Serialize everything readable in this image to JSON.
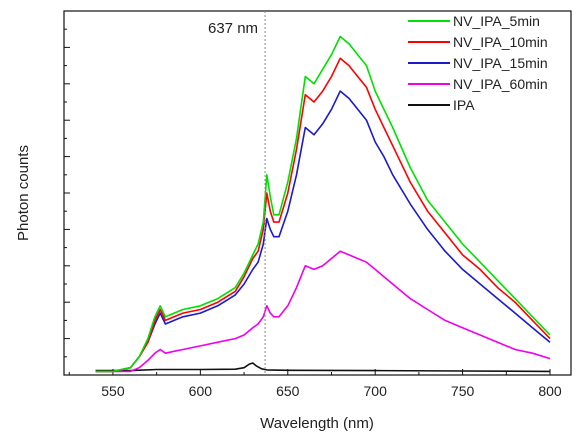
{
  "chart_data": {
    "type": "line",
    "xlabel": "Wavelength (nm)",
    "ylabel": "Photon counts",
    "xlim": [
      522,
      812
    ],
    "ylim": [
      0,
      100
    ],
    "xticks": [
      550,
      600,
      650,
      700,
      750,
      800
    ],
    "y_tick_labels": false,
    "grid": false,
    "legend_position": "top-right",
    "annotation": {
      "text": "637 nm",
      "x": 637,
      "style": "dotted vertical line"
    },
    "series": [
      {
        "name": "NV_IPA_5min",
        "color": "#00e000",
        "x": [
          540,
          550,
          560,
          565,
          570,
          574,
          577,
          580,
          585,
          590,
          600,
          610,
          620,
          625,
          630,
          633,
          636,
          638,
          640,
          642,
          645,
          650,
          655,
          660,
          665,
          670,
          675,
          680,
          685,
          690,
          695,
          700,
          705,
          710,
          720,
          730,
          740,
          750,
          760,
          770,
          780,
          790,
          800
        ],
        "y": [
          1,
          1,
          2,
          5,
          10,
          16,
          19,
          16,
          17,
          18,
          19,
          21,
          24,
          28,
          33,
          36,
          42,
          55,
          49,
          44,
          44,
          53,
          65,
          82,
          80,
          84,
          88,
          93,
          91,
          88,
          85,
          78,
          73,
          68,
          57,
          48,
          42,
          36,
          31,
          26,
          21,
          16,
          11
        ]
      },
      {
        "name": "NV_IPA_10min",
        "color": "#ff0000",
        "x": [
          540,
          550,
          560,
          565,
          570,
          574,
          577,
          580,
          585,
          590,
          600,
          610,
          620,
          625,
          630,
          633,
          636,
          638,
          640,
          642,
          645,
          650,
          655,
          660,
          665,
          670,
          675,
          680,
          685,
          690,
          695,
          700,
          705,
          710,
          720,
          730,
          740,
          750,
          760,
          770,
          780,
          790,
          800
        ],
        "y": [
          1,
          1,
          2,
          5,
          9,
          15,
          18,
          15,
          16,
          17,
          18,
          20,
          23,
          27,
          32,
          34,
          40,
          50,
          45,
          42,
          42,
          50,
          62,
          77,
          75,
          78,
          82,
          87,
          85,
          82,
          79,
          73,
          68,
          63,
          53,
          45,
          39,
          33,
          29,
          24,
          20,
          15,
          10
        ]
      },
      {
        "name": "NV_IPA_15min",
        "color": "#1a1acc",
        "x": [
          540,
          550,
          560,
          565,
          570,
          574,
          577,
          580,
          585,
          590,
          600,
          610,
          620,
          625,
          630,
          633,
          636,
          638,
          640,
          642,
          645,
          650,
          655,
          660,
          665,
          670,
          675,
          680,
          685,
          690,
          695,
          700,
          705,
          710,
          720,
          730,
          740,
          750,
          760,
          770,
          780,
          790,
          800
        ],
        "y": [
          1,
          1,
          2,
          5,
          9,
          14,
          17,
          14,
          15,
          16,
          17,
          19,
          22,
          25,
          29,
          31,
          36,
          43,
          40,
          38,
          38,
          45,
          55,
          68,
          66,
          69,
          73,
          78,
          76,
          73,
          70,
          64,
          60,
          55,
          47,
          40,
          34,
          29,
          25,
          21,
          17,
          13,
          9
        ]
      },
      {
        "name": "NV_IPA_60min",
        "color": "#ee00ee",
        "x": [
          540,
          550,
          560,
          565,
          570,
          574,
          577,
          580,
          585,
          590,
          600,
          610,
          620,
          625,
          630,
          633,
          636,
          638,
          640,
          642,
          645,
          650,
          655,
          660,
          665,
          670,
          675,
          680,
          685,
          690,
          695,
          700,
          705,
          710,
          720,
          730,
          740,
          750,
          760,
          770,
          780,
          790,
          800
        ],
        "y": [
          1,
          1,
          1,
          2,
          4,
          6,
          7,
          6,
          6.5,
          7,
          8,
          9,
          10,
          11,
          13,
          14,
          16,
          19,
          17,
          16,
          16,
          19,
          24,
          30,
          29,
          30,
          32,
          34,
          33,
          32,
          31,
          29,
          27,
          25,
          21,
          18,
          15,
          13,
          11,
          9,
          7,
          6,
          4.5
        ]
      },
      {
        "name": "IPA",
        "color": "#111111",
        "x": [
          540,
          560,
          575,
          580,
          600,
          620,
          625,
          628,
          630,
          632,
          635,
          638,
          650,
          700,
          750,
          800
        ],
        "y": [
          1.2,
          1.2,
          1.5,
          1.5,
          1.5,
          1.6,
          2,
          3,
          3.3,
          2.5,
          1.7,
          1.4,
          1.3,
          1.2,
          1.1,
          1.0
        ]
      }
    ]
  }
}
